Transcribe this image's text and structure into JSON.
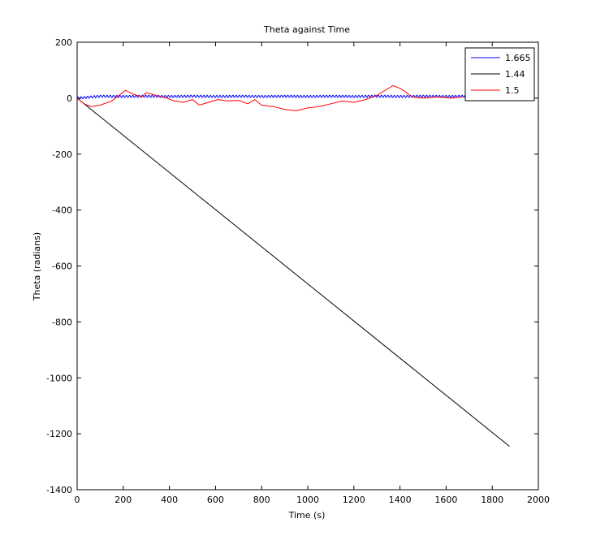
{
  "chart_data": {
    "type": "line",
    "title": "Theta against Time",
    "xlabel": "Time (s)",
    "ylabel": "Theta (radians)",
    "xlim": [
      0,
      2000
    ],
    "ylim": [
      -1400,
      200
    ],
    "xticks": [
      0,
      200,
      400,
      600,
      800,
      1000,
      1200,
      1400,
      1600,
      1800,
      2000
    ],
    "yticks": [
      200,
      0,
      -200,
      -400,
      -600,
      -800,
      -1000,
      -1200,
      -1400
    ],
    "grid": false,
    "legend_position": "top-right",
    "series": [
      {
        "name": "1.665",
        "color": "#0000ff",
        "x": [
          0,
          100,
          200,
          300,
          400,
          500,
          600,
          700,
          800,
          900,
          1000,
          1100,
          1200,
          1300,
          1400,
          1500,
          1600,
          1700
        ],
        "y": [
          0,
          7,
          6,
          7,
          6,
          7,
          6,
          7,
          6,
          7,
          6,
          7,
          6,
          7,
          6,
          7,
          6,
          7
        ],
        "oscillation_amplitude": 4,
        "oscillation_period": 14
      },
      {
        "name": "1.44",
        "color": "#000000",
        "x": [
          0,
          1875
        ],
        "y": [
          0,
          -1245
        ]
      },
      {
        "name": "1.5",
        "color": "#ff0000",
        "x": [
          0,
          30,
          60,
          100,
          150,
          210,
          240,
          280,
          300,
          350,
          390,
          420,
          460,
          500,
          530,
          570,
          610,
          650,
          700,
          740,
          770,
          800,
          850,
          900,
          950,
          1000,
          1050,
          1100,
          1150,
          1200,
          1250,
          1300,
          1340,
          1370,
          1400,
          1420,
          1450,
          1500,
          1560,
          1620,
          1670
        ],
        "y": [
          0,
          -20,
          -30,
          -25,
          -10,
          28,
          15,
          5,
          20,
          8,
          0,
          -10,
          -15,
          -5,
          -25,
          -15,
          -5,
          -10,
          -8,
          -20,
          -5,
          -25,
          -30,
          -40,
          -45,
          -35,
          -30,
          -20,
          -10,
          -15,
          -5,
          10,
          30,
          45,
          35,
          25,
          5,
          0,
          5,
          0,
          5
        ]
      }
    ]
  }
}
